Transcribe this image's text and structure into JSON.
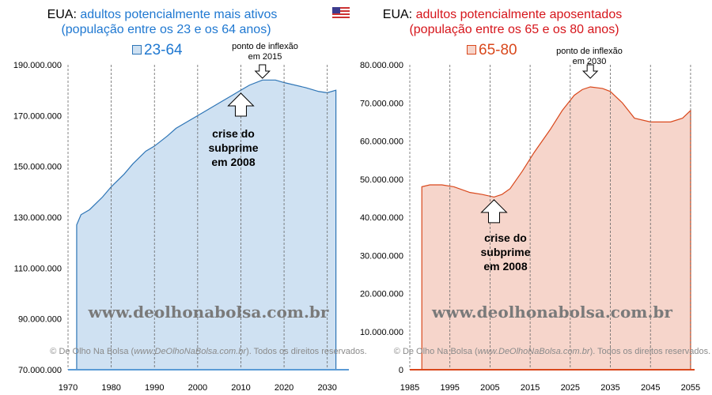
{
  "flag_icon": "us-flag-icon",
  "chart_data": [
    {
      "type": "area",
      "prefix": "EUA:",
      "title": "adultos potencialmente mais ativos",
      "subtitle": "(população entre os 23 e os 64 anos)",
      "legend": "23-64",
      "color": "#2e75b6",
      "fill": "#cfe1f2",
      "text_color": "#1f78d1",
      "x": [
        1972,
        1973,
        1975,
        1978,
        1980,
        1983,
        1985,
        1988,
        1990,
        1993,
        1995,
        2000,
        2005,
        2008,
        2010,
        2012,
        2015,
        2018,
        2020,
        2025,
        2028,
        2030,
        2032
      ],
      "values": [
        127,
        131,
        133,
        138,
        142,
        147,
        151,
        156,
        158,
        162,
        165,
        170,
        175,
        178,
        180,
        182,
        184,
        184,
        183,
        181,
        179.5,
        179,
        180
      ],
      "unit": "millions",
      "ylim": [
        70000000,
        190000000
      ],
      "yticks": [
        "190.000.000",
        "170.000.000",
        "150.000.000",
        "130.000.000",
        "110.000.000",
        "90.000.000",
        "70.000.000"
      ],
      "xticks": [
        "1970",
        "1980",
        "1990",
        "2000",
        "2010",
        "2020",
        "2030"
      ],
      "annotation": {
        "line1": "ponto de inflexão",
        "line2": "em 2015"
      },
      "crise": [
        "crise do",
        "subprime",
        "em 2008"
      ]
    },
    {
      "type": "area",
      "prefix": "EUA:",
      "title": "adultos potencialmente aposentados",
      "subtitle": "(população entre os 65 e os 80 anos)",
      "legend": "65-80",
      "color": "#d9481c",
      "fill": "#f6d5cb",
      "text_color": "#d6151b",
      "x": [
        1988,
        1990,
        1993,
        1996,
        2000,
        2003,
        2006,
        2008,
        2010,
        2013,
        2016,
        2020,
        2023,
        2026,
        2028,
        2030,
        2033,
        2035,
        2038,
        2041,
        2045,
        2050,
        2053,
        2055
      ],
      "values": [
        48,
        48.5,
        48.5,
        48,
        46.5,
        46,
        45.3,
        46,
        47.5,
        52,
        57,
        63,
        68,
        72,
        73.5,
        74.2,
        73.8,
        73,
        70,
        66,
        65,
        65,
        66,
        68
      ],
      "unit": "millions",
      "ylim": [
        0,
        80000000
      ],
      "yticks": [
        "80.000.000",
        "70.000.000",
        "60.000.000",
        "50.000.000",
        "40.000.000",
        "30.000.000",
        "20.000.000",
        "10.000.000",
        "0"
      ],
      "xticks": [
        "1985",
        "1995",
        "2005",
        "2015",
        "2025",
        "2035",
        "2045",
        "2055"
      ],
      "annotation": {
        "line1": "ponto de inflexão",
        "line2": "em 2030"
      },
      "crise": [
        "crise do",
        "subprime",
        "em 2008"
      ]
    }
  ],
  "watermark": "www.deolhonabolsa.com.br",
  "copyright_pre": "© De Olho Na Bolsa (",
  "copyright_link": "www.DeOlhoNaBolsa.com.br",
  "copyright_post": "). Todos os direitos reservados."
}
